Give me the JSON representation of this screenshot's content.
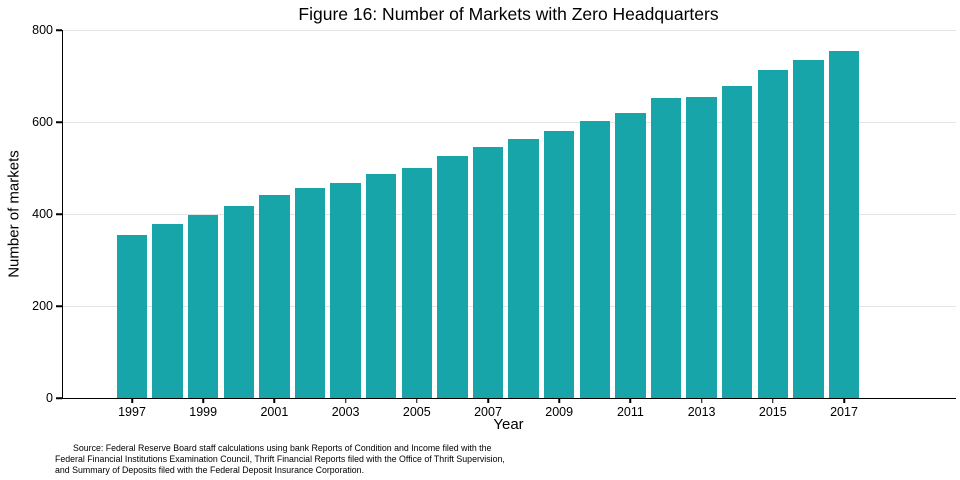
{
  "chart_data": {
    "type": "bar",
    "title": "Figure 16: Number of Markets with Zero Headquarters",
    "xlabel": "Year",
    "ylabel": "Number of markets",
    "ylim": [
      0,
      800
    ],
    "yticks": [
      0,
      200,
      400,
      600,
      800
    ],
    "x": [
      1997,
      1998,
      1999,
      2000,
      2001,
      2002,
      2003,
      2004,
      2005,
      2006,
      2007,
      2008,
      2009,
      2010,
      2011,
      2012,
      2013,
      2014,
      2015,
      2016,
      2017
    ],
    "values": [
      355,
      378,
      397,
      418,
      442,
      456,
      468,
      487,
      500,
      527,
      546,
      563,
      580,
      603,
      620,
      652,
      655,
      678,
      712,
      735,
      755
    ],
    "xtick_labels": [
      "1997",
      "1999",
      "2001",
      "2003",
      "2005",
      "2007",
      "2009",
      "2011",
      "2013",
      "2015",
      "2017"
    ],
    "bar_color": "#18a5a9",
    "grid": true,
    "legend": false
  },
  "source": {
    "lines": [
      "Source: Federal Reserve Board staff calculations using bank Reports of Condition and Income filed with the",
      "Federal Financial Institutions Examination Council, Thrift Financial Reports filed with the Office of Thrift Supervision,",
      "and Summary of Deposits filed with the Federal Deposit Insurance Corporation."
    ]
  }
}
